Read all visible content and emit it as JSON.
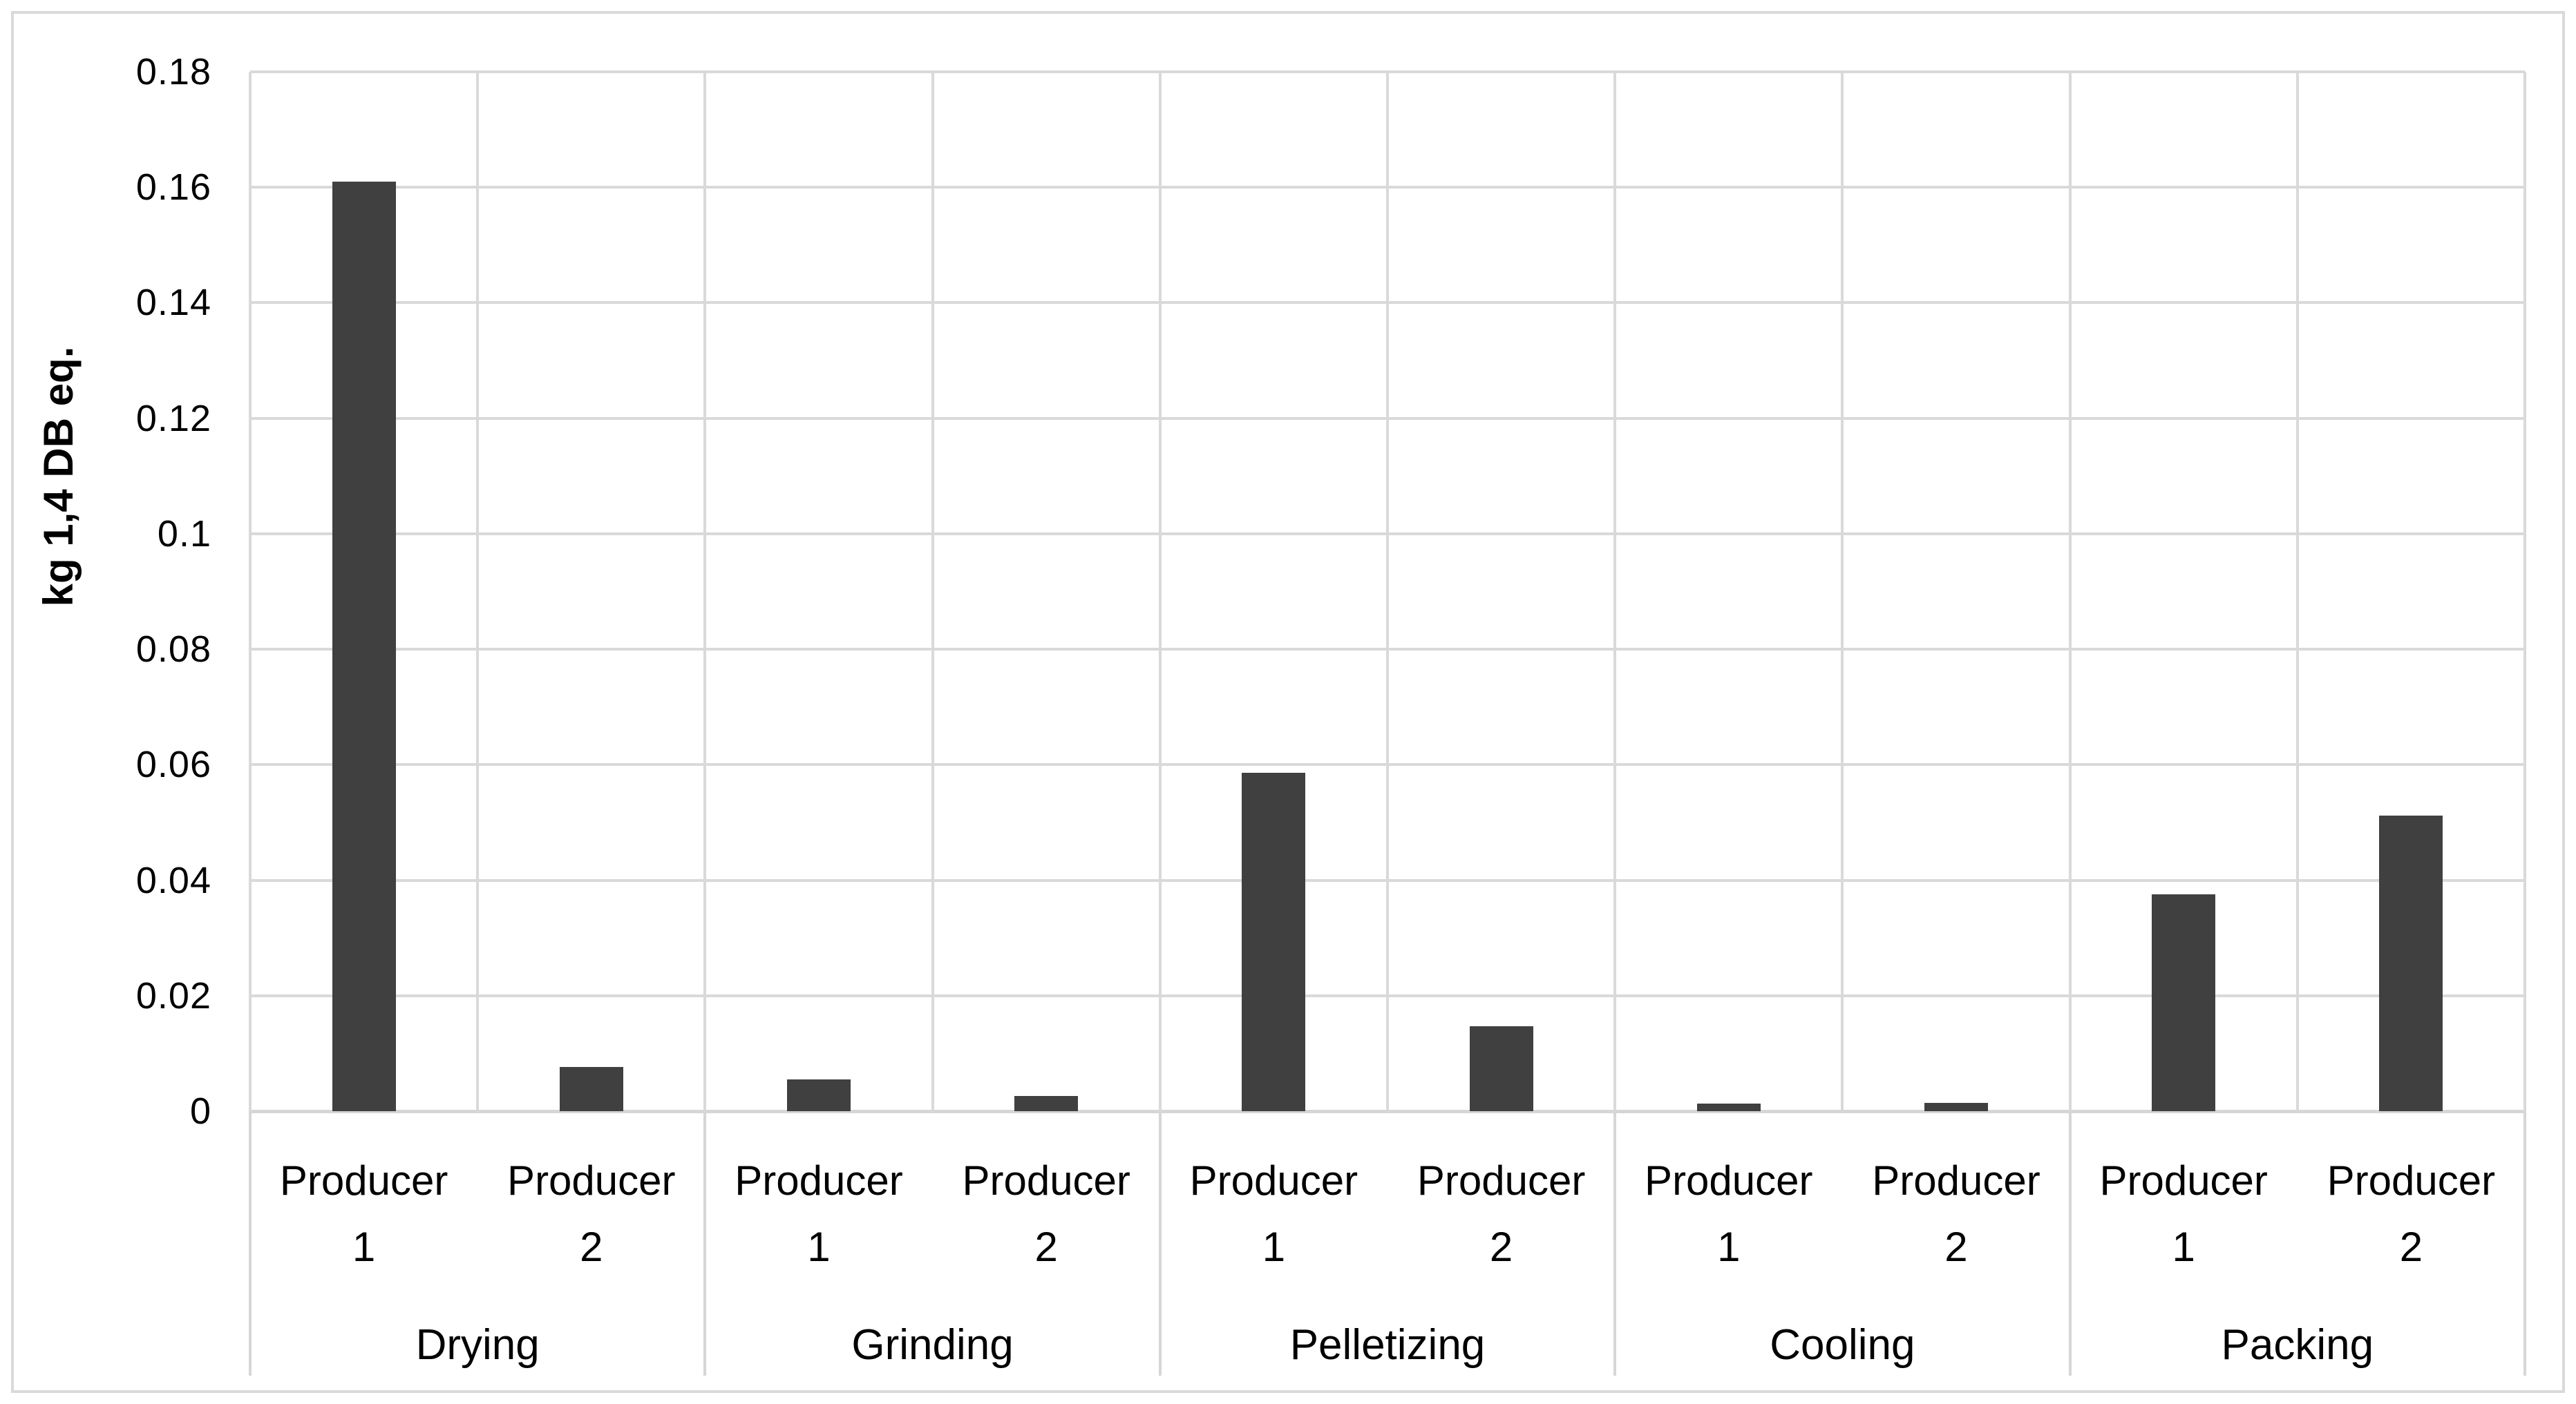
{
  "chart_data": {
    "type": "bar",
    "title": "",
    "ylabel": "kg 1,4 DB eq.",
    "xlabel": "",
    "ylim": [
      0,
      0.18
    ],
    "ytick_step": 0.02,
    "yticks_top_to_bottom": [
      "0.18",
      "0.16",
      "0.14",
      "0.12",
      "0.1",
      "0.08",
      "0.06",
      "0.04",
      "0.02",
      "0"
    ],
    "grid": true,
    "legend": "none",
    "groups": [
      "Drying",
      "Grinding",
      "Pelletizing",
      "Cooling",
      "Packing"
    ],
    "sub_categories": [
      "Producer 1",
      "Producer 2"
    ],
    "points": [
      {
        "group": "Drying",
        "producer": "Producer 1",
        "value": 0.161
      },
      {
        "group": "Drying",
        "producer": "Producer 2",
        "value": 0.0076
      },
      {
        "group": "Grinding",
        "producer": "Producer 1",
        "value": 0.0055
      },
      {
        "group": "Grinding",
        "producer": "Producer 2",
        "value": 0.0026
      },
      {
        "group": "Pelletizing",
        "producer": "Producer 1",
        "value": 0.0586
      },
      {
        "group": "Pelletizing",
        "producer": "Producer 2",
        "value": 0.0147
      },
      {
        "group": "Cooling",
        "producer": "Producer 1",
        "value": 0.0013
      },
      {
        "group": "Cooling",
        "producer": "Producer 2",
        "value": 0.0014
      },
      {
        "group": "Packing",
        "producer": "Producer 1",
        "value": 0.0375
      },
      {
        "group": "Packing",
        "producer": "Producer 2",
        "value": 0.0512
      }
    ],
    "colors": {
      "bar": "#404040",
      "gridline": "#d9d9d9",
      "axis_line": "#d6d6d6",
      "chart_border": "#d9d9d9",
      "text": "#000000",
      "background": "#ffffff"
    }
  }
}
